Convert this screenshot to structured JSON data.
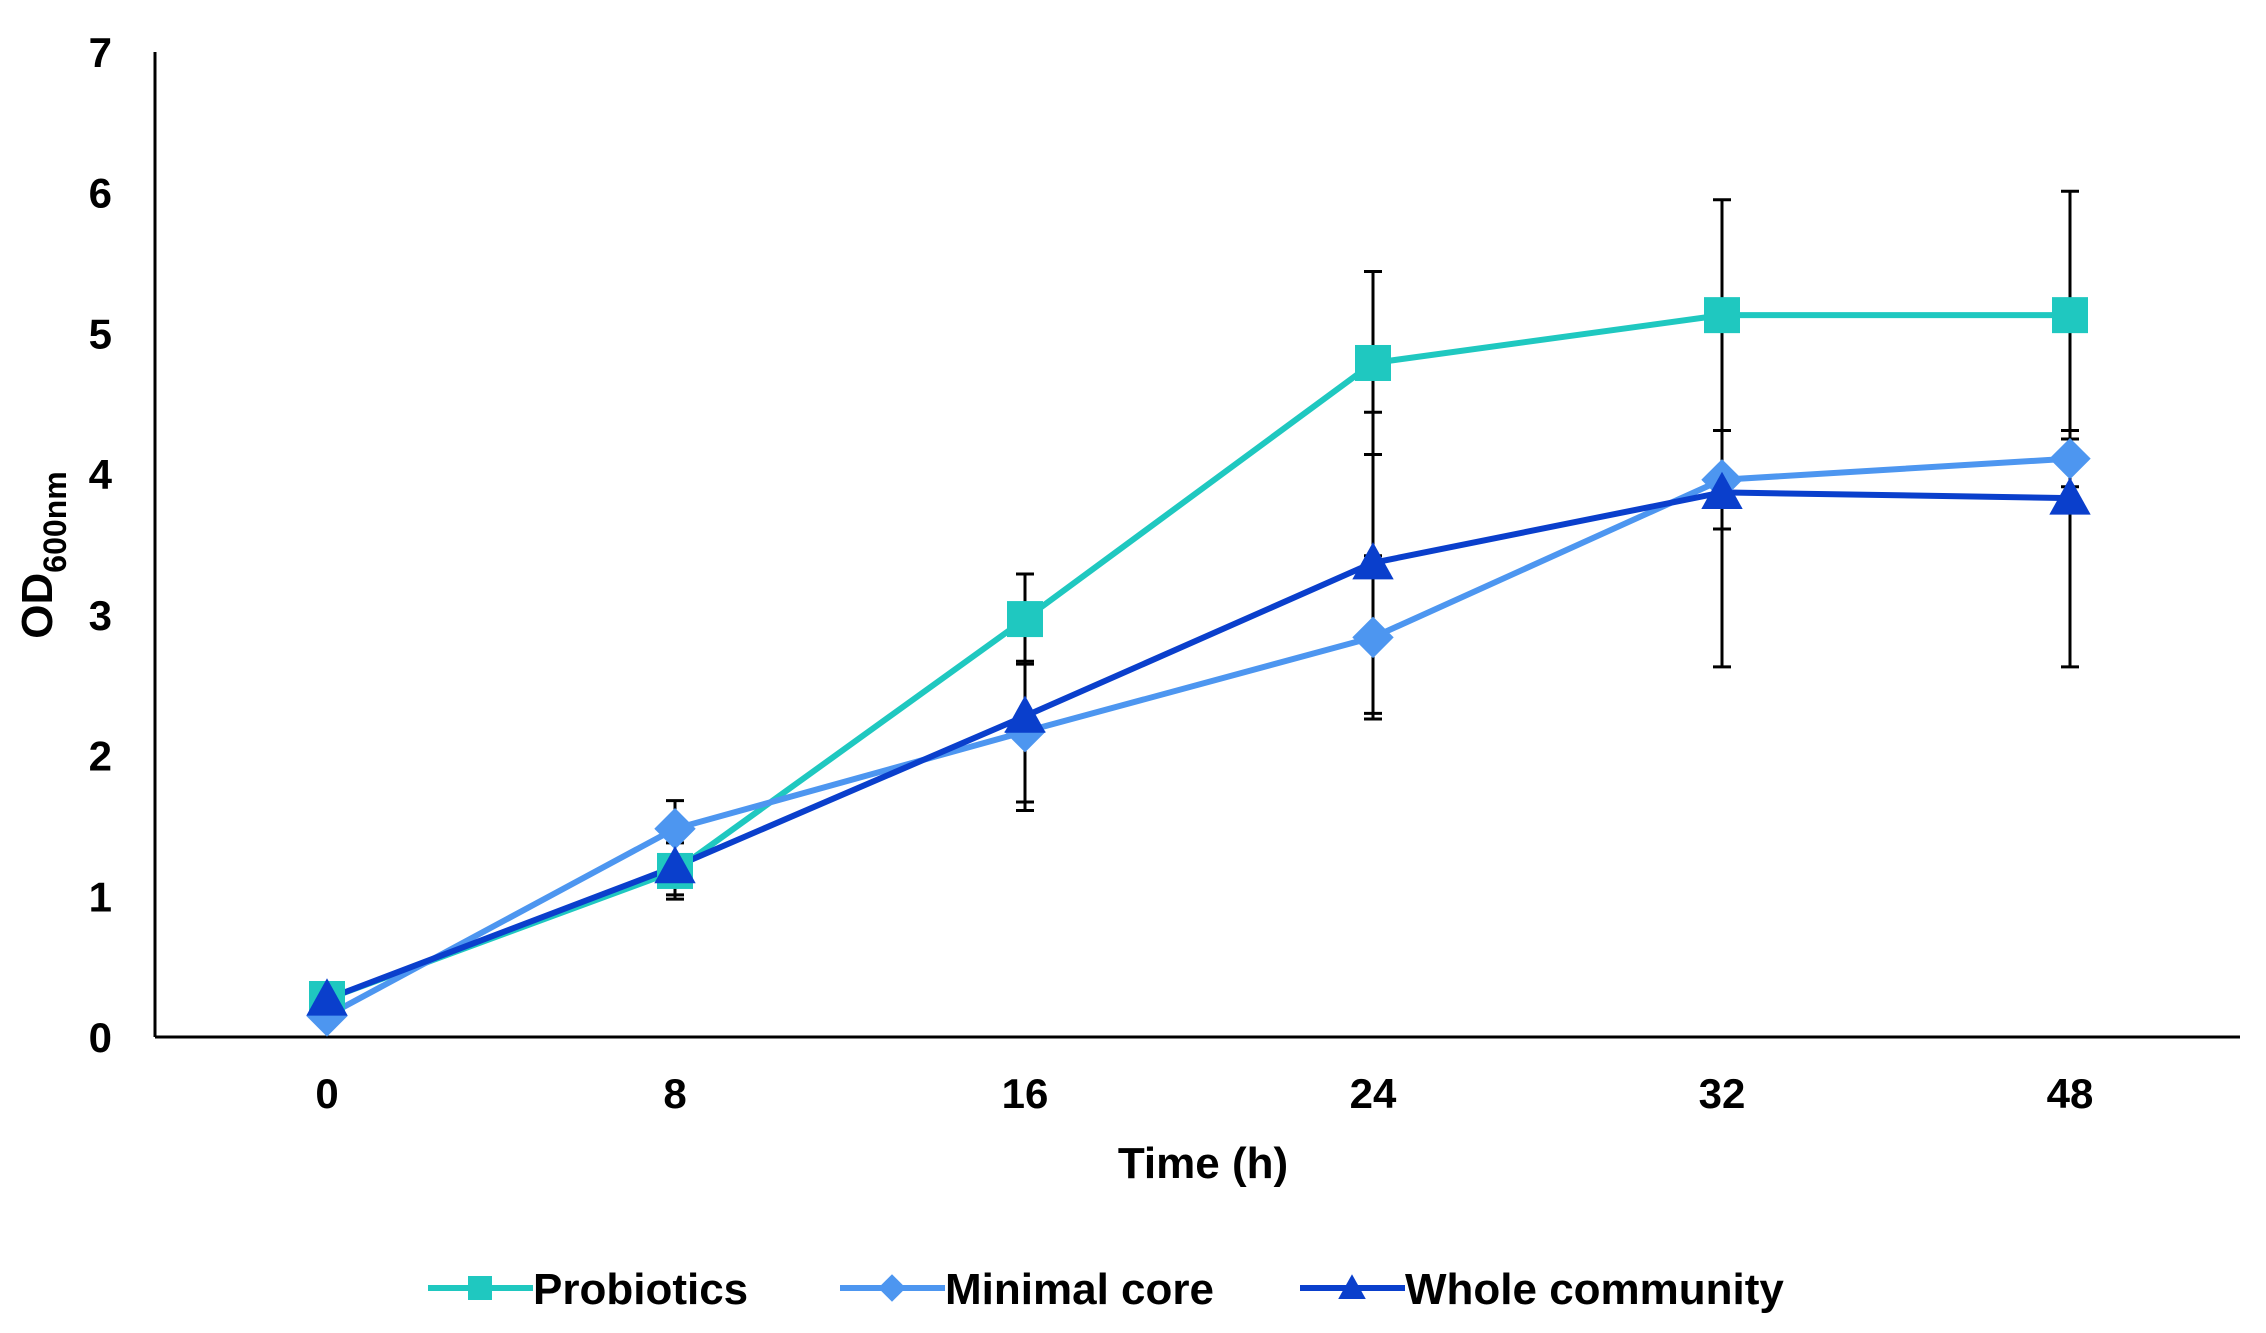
{
  "chart_data": {
    "type": "line",
    "title": "",
    "xlabel": "Time (h)",
    "ylabel": {
      "main": "OD",
      "sub": "600nm"
    },
    "categories": [
      "0",
      "8",
      "16",
      "24",
      "32",
      "48"
    ],
    "ylim": [
      0,
      7
    ],
    "yticks": [
      "0",
      "1",
      "2",
      "3",
      "4",
      "5",
      "6",
      "7"
    ],
    "grid": false,
    "legend_position": "bottom",
    "series": [
      {
        "name": "Probiotics",
        "color": "#1fc8c0",
        "marker": "square",
        "values": [
          0.27,
          1.18,
          2.97,
          4.79,
          5.13,
          5.13
        ],
        "errors": [
          0.0,
          0.2,
          0.32,
          0.65,
          0.82,
          0.88
        ]
      },
      {
        "name": "Minimal core",
        "color": "#4d96f0",
        "marker": "diamond",
        "values": [
          0.15,
          1.48,
          2.17,
          2.84,
          3.96,
          4.11
        ],
        "errors": [
          0.0,
          0.2,
          0.5,
          0.58,
          0.35,
          0.2
        ]
      },
      {
        "name": "Whole community",
        "color": "#0a3fcc",
        "marker": "triangle",
        "values": [
          0.27,
          1.21,
          2.28,
          3.37,
          3.87,
          3.83
        ],
        "errors": [
          0.0,
          0.2,
          0.67,
          1.07,
          1.24,
          1.2
        ]
      }
    ]
  }
}
